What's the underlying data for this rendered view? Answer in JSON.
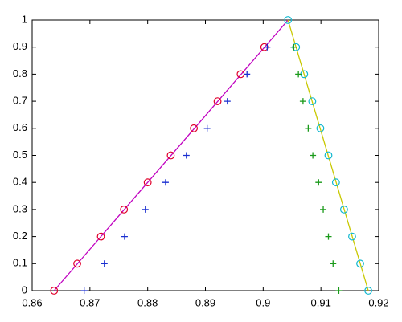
{
  "chart_data": {
    "type": "line",
    "xlim": [
      0.86,
      0.92
    ],
    "xticks": [
      0.86,
      0.87,
      0.88,
      0.89,
      0.9,
      0.91,
      0.92
    ],
    "ylim": [
      0,
      1
    ],
    "yticks": [
      0,
      0.1,
      0.2,
      0.3,
      0.4,
      0.5,
      0.6,
      0.7,
      0.8,
      0.9,
      1
    ],
    "series": [
      {
        "color": "#c000c0",
        "marker": "none",
        "line": true,
        "x": [
          0.8638,
          0.9043
        ],
        "values": [
          0,
          1
        ]
      },
      {
        "color": "#c8c800",
        "marker": "none",
        "line": true,
        "x": [
          0.9043,
          0.9182
        ],
        "values": [
          1,
          0
        ]
      },
      {
        "color": "#e0002a",
        "marker": "o",
        "line": false,
        "x": [
          0.8638,
          0.8678,
          0.8719,
          0.8759,
          0.88,
          0.884,
          0.888,
          0.8921,
          0.8961,
          0.9002
        ],
        "values": [
          0,
          0.1,
          0.2,
          0.3,
          0.4,
          0.5,
          0.6,
          0.7,
          0.8,
          0.9
        ]
      },
      {
        "color": "#1a2fd0",
        "marker": "+",
        "line": false,
        "x": [
          0.869,
          0.8725,
          0.876,
          0.8796,
          0.8831,
          0.8867,
          0.8903,
          0.8938,
          0.8972,
          0.9007
        ],
        "values": [
          0,
          0.1,
          0.2,
          0.3,
          0.4,
          0.5,
          0.6,
          0.7,
          0.8,
          0.9
        ]
      },
      {
        "color": "#10b8d0",
        "marker": "o",
        "line": false,
        "x": [
          0.9043,
          0.9057,
          0.9071,
          0.9085,
          0.9099,
          0.9113,
          0.9126,
          0.914,
          0.9154,
          0.9168,
          0.9182
        ],
        "values": [
          1,
          0.9,
          0.8,
          0.7,
          0.6,
          0.5,
          0.4,
          0.3,
          0.2,
          0.1,
          0
        ]
      },
      {
        "color": "#1a9a1a",
        "marker": "+",
        "line": false,
        "x": [
          0.9053,
          0.9061,
          0.9069,
          0.9078,
          0.9086,
          0.9096,
          0.9104,
          0.9113,
          0.9121,
          0.9131
        ],
        "values": [
          0.9,
          0.8,
          0.7,
          0.6,
          0.5,
          0.4,
          0.3,
          0.2,
          0.1,
          0
        ]
      }
    ]
  }
}
